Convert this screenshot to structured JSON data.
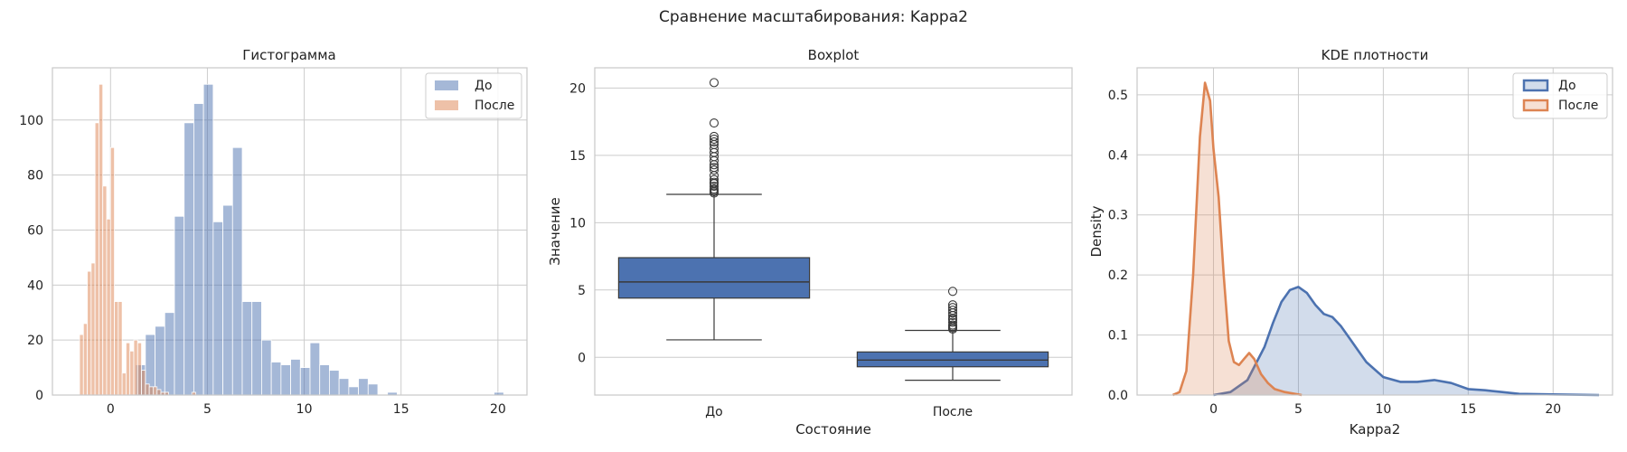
{
  "figure": {
    "suptitle": "Сравнение масштабирования: Kappa2"
  },
  "colors": {
    "before": "#4c72b0",
    "after": "#dd8452",
    "grid": "#cccccc"
  },
  "chart_data": [
    {
      "type": "bar",
      "kind": "histogram",
      "title": "Гистограмма",
      "xlabel": "",
      "ylabel": "",
      "xlim": [
        -3,
        21.5
      ],
      "ylim": [
        0,
        119
      ],
      "xticks": [
        0,
        5,
        10,
        15,
        20
      ],
      "yticks": [
        0,
        20,
        40,
        60,
        80,
        100
      ],
      "legend": {
        "position": "top-right",
        "entries": [
          "До",
          "После"
        ]
      },
      "series": [
        {
          "name": "До",
          "bin_start": 1.3,
          "bin_width": 0.5,
          "values": [
            11,
            22,
            25,
            30,
            65,
            99,
            106,
            113,
            63,
            69,
            90,
            34,
            34,
            20,
            12,
            11,
            13,
            10,
            19,
            11,
            9,
            6,
            3,
            6,
            4,
            0,
            1,
            0,
            0,
            0,
            0,
            0,
            0,
            0,
            0,
            0,
            0,
            1
          ]
        },
        {
          "name": "После",
          "bin_start": -1.6,
          "bin_width": 0.2,
          "values": [
            22,
            26,
            45,
            48,
            99,
            113,
            76,
            64,
            90,
            34,
            34,
            8,
            19,
            16,
            20,
            19,
            9,
            4,
            3,
            3,
            2,
            1,
            1,
            0,
            0,
            0,
            0,
            0,
            0,
            1
          ]
        }
      ]
    },
    {
      "type": "boxplot",
      "title": "Boxplot",
      "xlabel": "Состояние",
      "ylabel": "Значение",
      "categories": [
        "До",
        "После"
      ],
      "ylim": [
        -2.8,
        21.5
      ],
      "yticks": [
        0,
        5,
        10,
        15,
        20
      ],
      "boxes": [
        {
          "name": "До",
          "whisker_low": 1.3,
          "q1": 4.4,
          "median": 5.6,
          "q3": 7.4,
          "whisker_high": 12.1,
          "outliers": [
            12.2,
            12.3,
            12.4,
            12.5,
            12.7,
            12.9,
            13.0,
            13.2,
            13.5,
            13.9,
            14.1,
            14.3,
            14.6,
            14.9,
            15.2,
            15.5,
            15.8,
            16.0,
            16.2,
            16.4,
            17.4,
            20.4
          ]
        },
        {
          "name": "После",
          "whisker_low": -1.7,
          "q1": -0.7,
          "median": -0.2,
          "q3": 0.4,
          "whisker_high": 2.0,
          "outliers": [
            2.1,
            2.2,
            2.3,
            2.4,
            2.6,
            2.8,
            2.9,
            3.1,
            3.3,
            3.5,
            3.7,
            3.9,
            4.9
          ]
        }
      ]
    },
    {
      "type": "area",
      "kind": "kde",
      "title": "KDE плотности",
      "xlabel": "Kappa2",
      "ylabel": "Density",
      "xlim": [
        -4.5,
        23.5
      ],
      "ylim": [
        0,
        0.545
      ],
      "xticks": [
        0,
        5,
        10,
        15,
        20
      ],
      "yticks": [
        0.0,
        0.1,
        0.2,
        0.3,
        0.4,
        0.5
      ],
      "legend": {
        "position": "top-right",
        "entries": [
          "До",
          "После"
        ]
      },
      "series": [
        {
          "name": "До",
          "x": [
            0.0,
            1.0,
            2.0,
            3.0,
            3.5,
            4.0,
            4.5,
            5.0,
            5.5,
            6.0,
            6.5,
            7.0,
            7.5,
            8.0,
            8.5,
            9.0,
            10.0,
            11.0,
            12.0,
            13.0,
            14.0,
            15.0,
            16.0,
            17.0,
            18.0,
            20.0,
            22.7
          ],
          "y": [
            0.0,
            0.005,
            0.025,
            0.08,
            0.12,
            0.155,
            0.175,
            0.18,
            0.17,
            0.15,
            0.135,
            0.13,
            0.115,
            0.095,
            0.075,
            0.055,
            0.03,
            0.022,
            0.022,
            0.025,
            0.02,
            0.01,
            0.008,
            0.005,
            0.002,
            0.001,
            0.0
          ]
        },
        {
          "name": "После",
          "x": [
            -2.4,
            -2.0,
            -1.6,
            -1.2,
            -0.8,
            -0.5,
            -0.2,
            0.0,
            0.3,
            0.6,
            0.9,
            1.2,
            1.5,
            1.8,
            2.1,
            2.4,
            2.8,
            3.2,
            3.6,
            4.2,
            5.2
          ],
          "y": [
            0.0,
            0.005,
            0.04,
            0.2,
            0.43,
            0.52,
            0.49,
            0.41,
            0.33,
            0.2,
            0.09,
            0.055,
            0.05,
            0.06,
            0.07,
            0.06,
            0.035,
            0.02,
            0.01,
            0.005,
            0.0
          ]
        }
      ]
    }
  ]
}
